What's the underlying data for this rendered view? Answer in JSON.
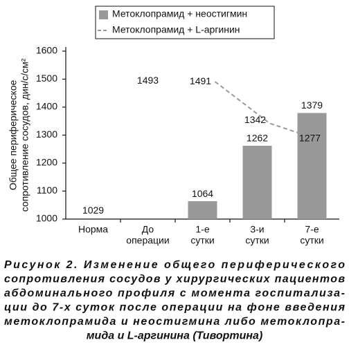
{
  "chart_data": {
    "type": "bar",
    "y_label": [
      "Общее периферическое",
      "сопротивление сосудов, дин/с/см²"
    ],
    "categories": [
      [
        "Норма"
      ],
      [
        "До",
        "операции"
      ],
      [
        "1-е",
        "сутки"
      ],
      [
        "3-и",
        "сутки"
      ],
      [
        "7-е",
        "сутки"
      ]
    ],
    "series": [
      {
        "name": "Метоклопрамид + неостигмин",
        "type": "bar",
        "color": "#999999",
        "values": [
          null,
          null,
          1064,
          1262,
          1379
        ]
      },
      {
        "name": "Метоклопрамид + L-аргинин",
        "type": "line",
        "color": "#999999",
        "dashed": true,
        "values": [
          null,
          null,
          1491,
          1342,
          1277
        ]
      },
      {
        "type": "label",
        "values": [
          1029,
          1493,
          null,
          null,
          null
        ]
      }
    ],
    "ylim": [
      1000,
      1600
    ],
    "yticks": [
      1000,
      1100,
      1200,
      1300,
      1400,
      1500,
      1600
    ],
    "grid": false,
    "legend": "top",
    "caption": [
      "Рисунок 2. Изменение общего периферического",
      "сопротивления сосудов у хирургических пациентов",
      "абдоминального профиля с момента госпитализа-",
      "ции до 7-х суток после операции на фоне введения",
      "метоклопрамида и неостигмина либо метоклопра-",
      "мида и L-аргинина (Тивортина)"
    ]
  }
}
